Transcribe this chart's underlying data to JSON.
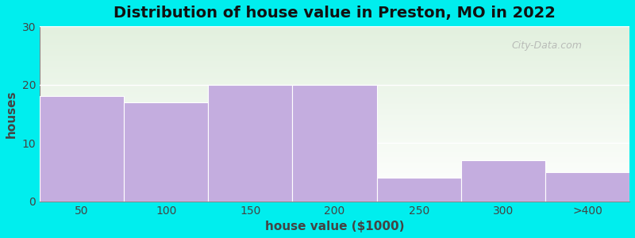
{
  "title": "Distribution of house value in Preston, MO in 2022",
  "xlabel": "house value ($1000)",
  "ylabel": "houses",
  "bar_labels": [
    "50",
    "100",
    "150",
    "200",
    "250",
    "300",
    ">400"
  ],
  "bar_values": [
    18,
    17,
    20,
    20,
    4,
    7,
    5
  ],
  "bar_color": "#C4ADDF",
  "bar_edgecolor": "#FFFFFF",
  "ylim": [
    0,
    30
  ],
  "yticks": [
    0,
    10,
    20,
    30
  ],
  "xlim_left": -0.5,
  "xlim_right": 6.5,
  "background_outer": "#00EEEE",
  "background_inner_top": "#E2F0DE",
  "background_inner_bottom": "#FFFFFF",
  "title_fontsize": 14,
  "axis_label_fontsize": 11,
  "tick_fontsize": 10,
  "watermark_text": "City-Data.com"
}
